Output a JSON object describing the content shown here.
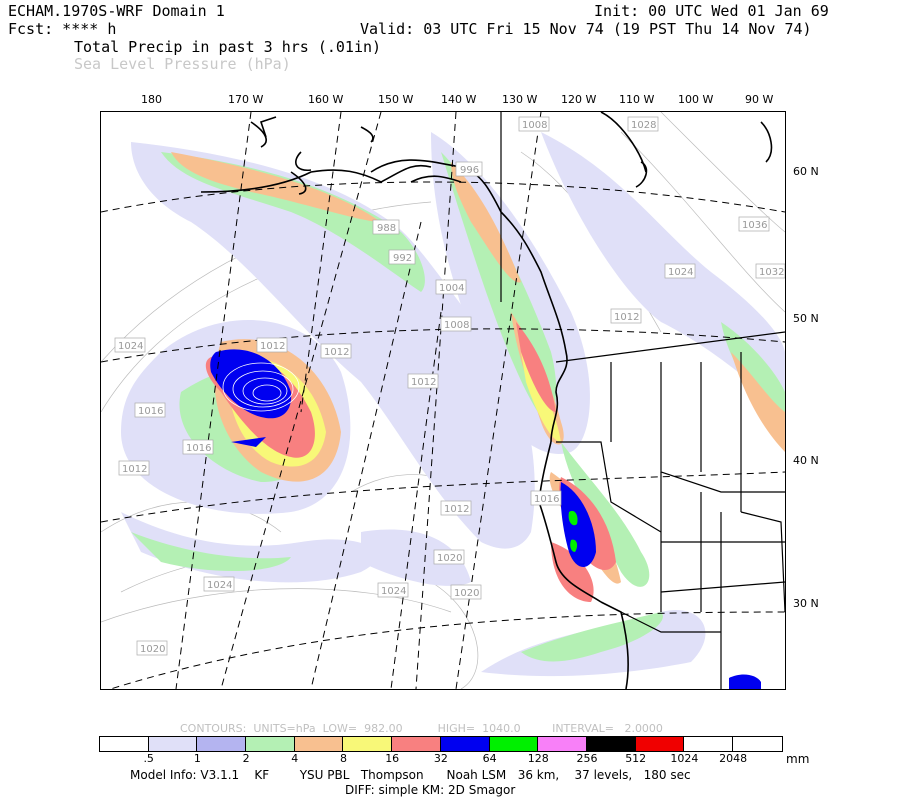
{
  "header": {
    "model": "ECHAM.1970S-WRF Domain 1",
    "init": "Init: 00 UTC Wed 01 Jan 69",
    "fcst": "Fcst: **** h",
    "valid": "Valid: 03 UTC Fri 15 Nov 74 (19 PST Thu 14 Nov 74)",
    "field1": "Total Precip in past 3 hrs (.01in)",
    "field2": "Sea Level Pressure (hPa)"
  },
  "lon_labels": [
    "180",
    "170 W",
    "160 W",
    "150 W",
    "140 W",
    "130 W",
    "120 W",
    "110 W",
    "100 W",
    "90 W"
  ],
  "lat_labels": [
    "60 N",
    "50 N",
    "40 N",
    "30 N"
  ],
  "pressure_labels": [
    "1008",
    "1028",
    "1036",
    "996",
    "1024",
    "1032",
    "988",
    "992",
    "1012",
    "1012",
    "1004",
    "1008",
    "1024",
    "1012",
    "1012",
    "1016",
    "1016",
    "1012",
    "1012",
    "1016",
    "1020",
    "1024",
    "1020",
    "1024",
    "1020"
  ],
  "contour_info": {
    "contours": "CONTOURS:",
    "units": "UNITS=hPa",
    "low": "LOW=  982.00",
    "high": "HIGH=  1040.0",
    "interval": "INTERVAL=   2.0000"
  },
  "colorbar": {
    "colors": [
      "#ffffff",
      "#e0e0f8",
      "#b4b4f0",
      "#b4f0b4",
      "#f8c090",
      "#f8f878",
      "#f88080",
      "#0000f0",
      "#00f000",
      "#f880f8",
      "#000000",
      "#f00000",
      "#ffffff",
      "#ffffff"
    ],
    "labels": [
      ".5",
      "1",
      "2",
      "4",
      "8",
      "16",
      "32",
      "64",
      "128",
      "256",
      "512",
      "1024",
      "2048"
    ],
    "units": "mm"
  },
  "footer": {
    "line1": "Model Info: V3.1.1    KF        YSU PBL   Thompson      Noah LSM   36 km,    37 levels,   180 sec",
    "line2": "DIFF: simple KM: 2D Smagor"
  }
}
